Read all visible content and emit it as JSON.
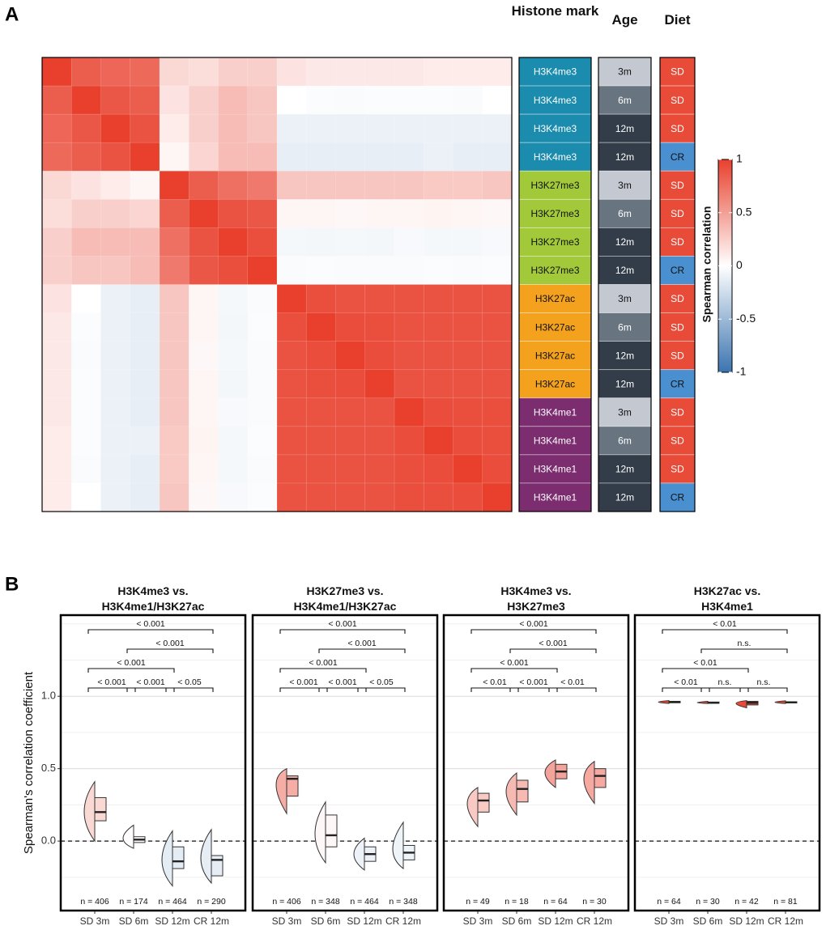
{
  "chart_data": [
    {
      "type": "heatmap",
      "panel": "A",
      "values": [
        [
          1,
          0.85,
          0.8,
          0.78,
          0.2,
          0.18,
          0.25,
          0.25,
          0.15,
          0.12,
          0.12,
          0.12,
          0.12,
          0.1,
          0.1,
          0.1
        ],
        [
          0.85,
          1,
          0.88,
          0.85,
          0.15,
          0.25,
          0.35,
          0.3,
          0,
          -0.02,
          -0.03,
          -0.02,
          -0.02,
          -0.02,
          -0.03,
          0
        ],
        [
          0.8,
          0.88,
          1,
          0.9,
          0.1,
          0.25,
          0.35,
          0.3,
          -0.1,
          -0.1,
          -0.1,
          -0.1,
          -0.1,
          -0.1,
          -0.1,
          -0.1
        ],
        [
          0.78,
          0.85,
          0.9,
          1,
          0.05,
          0.22,
          0.35,
          0.35,
          -0.12,
          -0.12,
          -0.12,
          -0.12,
          -0.12,
          -0.1,
          -0.12,
          -0.12
        ],
        [
          0.2,
          0.15,
          0.1,
          0.05,
          1,
          0.85,
          0.75,
          0.7,
          0.3,
          0.3,
          0.3,
          0.3,
          0.3,
          0.28,
          0.28,
          0.3
        ],
        [
          0.18,
          0.25,
          0.25,
          0.22,
          0.85,
          1,
          0.9,
          0.88,
          0.05,
          0.05,
          0.04,
          0.05,
          0.05,
          0.06,
          0.05,
          0.04
        ],
        [
          0.25,
          0.35,
          0.35,
          0.35,
          0.75,
          0.9,
          1,
          0.92,
          -0.05,
          -0.06,
          -0.05,
          -0.06,
          -0.04,
          -0.05,
          -0.05,
          -0.04
        ],
        [
          0.25,
          0.3,
          0.3,
          0.35,
          0.7,
          0.88,
          0.92,
          1,
          -0.03,
          -0.02,
          -0.03,
          -0.03,
          -0.03,
          -0.02,
          -0.03,
          -0.02
        ],
        [
          0.15,
          0,
          -0.1,
          -0.12,
          0.3,
          0.05,
          -0.05,
          -0.03,
          1,
          0.92,
          0.9,
          0.9,
          0.9,
          0.9,
          0.9,
          0.9
        ],
        [
          0.12,
          -0.02,
          -0.1,
          -0.12,
          0.3,
          0.05,
          -0.06,
          -0.02,
          0.92,
          1,
          0.93,
          0.92,
          0.9,
          0.9,
          0.9,
          0.9
        ],
        [
          0.12,
          -0.03,
          -0.1,
          -0.12,
          0.3,
          0.04,
          -0.05,
          -0.03,
          0.9,
          0.93,
          1,
          0.93,
          0.9,
          0.9,
          0.9,
          0.9
        ],
        [
          0.12,
          -0.02,
          -0.1,
          -0.12,
          0.3,
          0.05,
          -0.06,
          -0.03,
          0.9,
          0.92,
          0.93,
          1,
          0.9,
          0.9,
          0.9,
          0.9
        ],
        [
          0.12,
          -0.02,
          -0.1,
          -0.12,
          0.3,
          0.05,
          -0.04,
          -0.03,
          0.9,
          0.9,
          0.9,
          0.9,
          1,
          0.93,
          0.92,
          0.92
        ],
        [
          0.1,
          -0.02,
          -0.1,
          -0.1,
          0.28,
          0.06,
          -0.05,
          -0.02,
          0.9,
          0.9,
          0.9,
          0.9,
          0.93,
          1,
          0.93,
          0.92
        ],
        [
          0.1,
          -0.03,
          -0.1,
          -0.12,
          0.28,
          0.05,
          -0.05,
          -0.03,
          0.9,
          0.9,
          0.9,
          0.9,
          0.92,
          0.93,
          1,
          0.93
        ],
        [
          0.1,
          0,
          -0.1,
          -0.12,
          0.3,
          0.04,
          -0.04,
          -0.02,
          0.9,
          0.9,
          0.9,
          0.9,
          0.92,
          0.92,
          0.93,
          1
        ]
      ],
      "colorscale": [
        "#3b74b0",
        "#ffffff",
        "#e8402d"
      ],
      "zlim": [
        -1,
        1
      ],
      "zticks": [
        1,
        0.5,
        0,
        -0.5,
        -1
      ],
      "colorbar_title": "Spearman correlation",
      "annotations": [
        {
          "name": "Histone mark",
          "labels": [
            "H3K4me3",
            "H3K4me3",
            "H3K4me3",
            "H3K4me3",
            "H3K27me3",
            "H3K27me3",
            "H3K27me3",
            "H3K27me3",
            "H3K27ac",
            "H3K27ac",
            "H3K27ac",
            "H3K27ac",
            "H3K4me1",
            "H3K4me1",
            "H3K4me1",
            "H3K4me1"
          ],
          "colors": {
            "H3K4me3": "#1b8cad",
            "H3K27me3": "#a2c93a",
            "H3K27ac": "#f4a11d",
            "H3K4me1": "#7c2d70"
          }
        },
        {
          "name": "Age",
          "labels": [
            "3m",
            "6m",
            "12m",
            "12m",
            "3m",
            "6m",
            "12m",
            "12m",
            "3m",
            "6m",
            "12m",
            "12m",
            "3m",
            "6m",
            "12m",
            "12m"
          ],
          "colors": {
            "3m": "#c4c8d0",
            "6m": "#687581",
            "12m": "#333d49"
          }
        },
        {
          "name": "Diet",
          "labels": [
            "SD",
            "SD",
            "SD",
            "CR",
            "SD",
            "SD",
            "SD",
            "CR",
            "SD",
            "SD",
            "SD",
            "CR",
            "SD",
            "SD",
            "SD",
            "CR"
          ],
          "colors": {
            "SD": "#e84b38",
            "CR": "#4a8fd0"
          }
        }
      ]
    },
    {
      "type": "box",
      "panel": "B",
      "y_label": "Spearman's correlation coefficient",
      "categories": [
        "SD 3m",
        "SD 6m",
        "SD 12m",
        "CR 12m"
      ],
      "ylim": [
        -0.48,
        1.56
      ],
      "yticks": [
        {
          "value": 0,
          "label": "0.0"
        },
        {
          "value": 0.5,
          "label": "0.5"
        },
        {
          "value": 1,
          "label": "1.0"
        }
      ],
      "minor_yticks": [
        -0.25,
        0.25,
        0.75,
        1.25,
        1.5
      ],
      "hline": 0,
      "grid": true,
      "colorscale": [
        "#3b74b0",
        "#ffffff",
        "#e8402d"
      ],
      "zlim": [
        -1,
        1
      ],
      "facets": [
        {
          "title": "H3K4me3 vs.\nH3K4me1/H3K27ac",
          "boxes": [
            {
              "min": 0.0,
              "q1": 0.14,
              "median": 0.2,
              "q3": 0.3,
              "max": 0.41
            },
            {
              "min": -0.05,
              "q1": -0.01,
              "median": 0.01,
              "q3": 0.03,
              "max": 0.11
            },
            {
              "min": -0.31,
              "q1": -0.19,
              "median": -0.14,
              "q3": -0.04,
              "max": 0.07
            },
            {
              "min": -0.29,
              "q1": -0.24,
              "median": -0.13,
              "q3": -0.1,
              "max": 0.08
            }
          ],
          "n": [
            406,
            174,
            464,
            290
          ],
          "n_labels": [
            "n = 406",
            "n = 174",
            "n = 464",
            "n = 290"
          ],
          "comparisons": [
            {
              "groups": [
                "SD 3m",
                "SD 6m"
              ],
              "label": "< 0.001"
            },
            {
              "groups": [
                "SD 6m",
                "SD 12m"
              ],
              "label": "< 0.001"
            },
            {
              "groups": [
                "SD 12m",
                "CR 12m"
              ],
              "label": "< 0.05"
            },
            {
              "groups": [
                "SD 3m",
                "SD 12m"
              ],
              "label": "< 0.001"
            },
            {
              "groups": [
                "SD 6m",
                "CR 12m"
              ],
              "label": "< 0.001"
            },
            {
              "groups": [
                "SD 3m",
                "CR 12m"
              ],
              "label": "< 0.001"
            }
          ]
        },
        {
          "title": "H3K27me3 vs.\nH3K4me1/H3K27ac",
          "boxes": [
            {
              "min": 0.19,
              "q1": 0.31,
              "median": 0.43,
              "q3": 0.45,
              "max": 0.5
            },
            {
              "min": -0.15,
              "q1": -0.04,
              "median": 0.04,
              "q3": 0.18,
              "max": 0.27
            },
            {
              "min": -0.2,
              "q1": -0.14,
              "median": -0.09,
              "q3": -0.04,
              "max": 0.02
            },
            {
              "min": -0.19,
              "q1": -0.13,
              "median": -0.08,
              "q3": -0.03,
              "max": 0.13
            }
          ],
          "n": [
            406,
            348,
            464,
            348
          ],
          "n_labels": [
            "n = 406",
            "n = 348",
            "n = 464",
            "n = 348"
          ],
          "comparisons": [
            {
              "groups": [
                "SD 3m",
                "SD 6m"
              ],
              "label": "< 0.001"
            },
            {
              "groups": [
                "SD 6m",
                "SD 12m"
              ],
              "label": "< 0.001"
            },
            {
              "groups": [
                "SD 12m",
                "CR 12m"
              ],
              "label": "< 0.05"
            },
            {
              "groups": [
                "SD 3m",
                "SD 12m"
              ],
              "label": "< 0.001"
            },
            {
              "groups": [
                "SD 6m",
                "CR 12m"
              ],
              "label": "< 0.001"
            },
            {
              "groups": [
                "SD 3m",
                "CR 12m"
              ],
              "label": "< 0.001"
            }
          ]
        },
        {
          "title": "H3K4me3 vs.\nH3K27me3",
          "boxes": [
            {
              "min": 0.1,
              "q1": 0.2,
              "median": 0.28,
              "q3": 0.33,
              "max": 0.37
            },
            {
              "min": 0.18,
              "q1": 0.27,
              "median": 0.36,
              "q3": 0.42,
              "max": 0.47
            },
            {
              "min": 0.37,
              "q1": 0.43,
              "median": 0.48,
              "q3": 0.53,
              "max": 0.56
            },
            {
              "min": 0.26,
              "q1": 0.37,
              "median": 0.45,
              "q3": 0.5,
              "max": 0.55
            }
          ],
          "n": [
            49,
            18,
            64,
            30
          ],
          "n_labels": [
            "n = 49",
            "n = 18",
            "n = 64",
            "n = 30"
          ],
          "comparisons": [
            {
              "groups": [
                "SD 3m",
                "SD 6m"
              ],
              "label": "< 0.01"
            },
            {
              "groups": [
                "SD 6m",
                "SD 12m"
              ],
              "label": "< 0.001"
            },
            {
              "groups": [
                "SD 12m",
                "CR 12m"
              ],
              "label": "< 0.01"
            },
            {
              "groups": [
                "SD 3m",
                "SD 12m"
              ],
              "label": "< 0.001"
            },
            {
              "groups": [
                "SD 6m",
                "CR 12m"
              ],
              "label": "< 0.001"
            },
            {
              "groups": [
                "SD 3m",
                "CR 12m"
              ],
              "label": "< 0.001"
            }
          ]
        },
        {
          "title": "H3K27ac vs.\nH3K4me1",
          "boxes": [
            {
              "min": 0.95,
              "q1": 0.955,
              "median": 0.96,
              "q3": 0.965,
              "max": 0.97
            },
            {
              "min": 0.95,
              "q1": 0.952,
              "median": 0.955,
              "q3": 0.96,
              "max": 0.965
            },
            {
              "min": 0.92,
              "q1": 0.94,
              "median": 0.955,
              "q3": 0.965,
              "max": 0.97
            },
            {
              "min": 0.95,
              "q1": 0.954,
              "median": 0.958,
              "q3": 0.962,
              "max": 0.968
            }
          ],
          "n": [
            64,
            30,
            42,
            81
          ],
          "n_labels": [
            "n = 64",
            "n = 30",
            "n = 42",
            "n = 81"
          ],
          "comparisons": [
            {
              "groups": [
                "SD 3m",
                "SD 6m"
              ],
              "label": "< 0.01"
            },
            {
              "groups": [
                "SD 6m",
                "SD 12m"
              ],
              "label": "n.s."
            },
            {
              "groups": [
                "SD 12m",
                "CR 12m"
              ],
              "label": "n.s."
            },
            {
              "groups": [
                "SD 3m",
                "SD 12m"
              ],
              "label": "< 0.01"
            },
            {
              "groups": [
                "SD 6m",
                "CR 12m"
              ],
              "label": "n.s."
            },
            {
              "groups": [
                "SD 3m",
                "CR 12m"
              ],
              "label": "< 0.01"
            }
          ]
        }
      ]
    }
  ]
}
